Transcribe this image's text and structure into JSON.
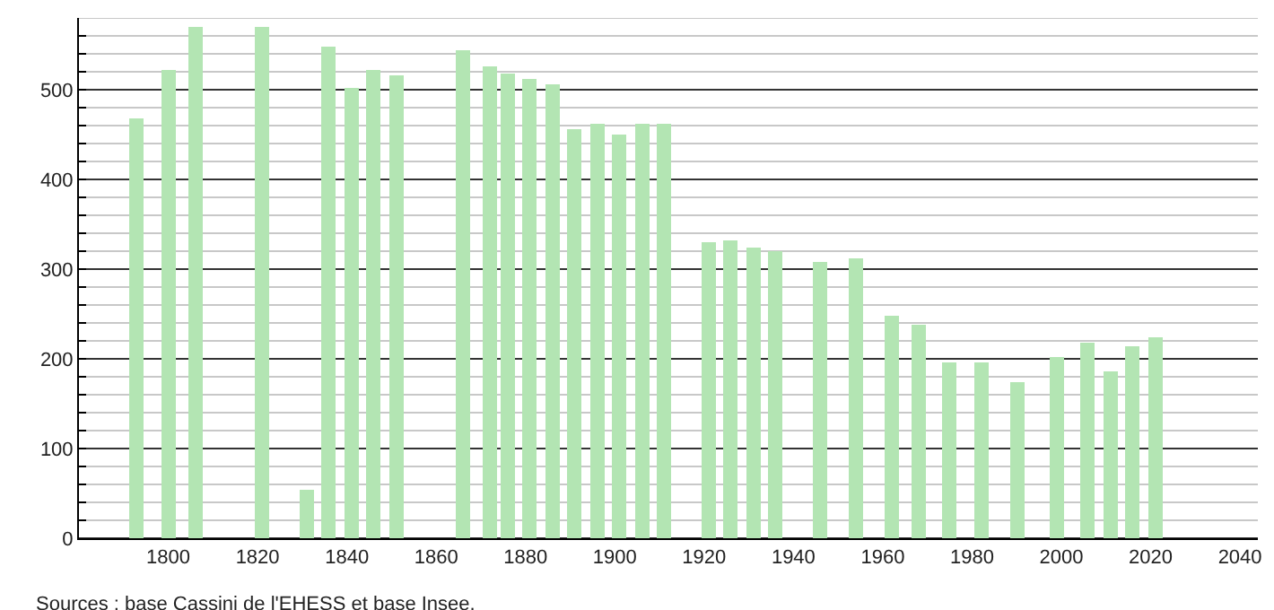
{
  "chart_data": {
    "type": "bar",
    "x": [
      1793,
      1800,
      1806,
      1821,
      1831,
      1836,
      1841,
      1846,
      1851,
      1866,
      1872,
      1876,
      1881,
      1886,
      1891,
      1896,
      1901,
      1906,
      1911,
      1921,
      1926,
      1931,
      1936,
      1946,
      1954,
      1962,
      1968,
      1975,
      1982,
      1990,
      1999,
      2006,
      2011,
      2016,
      2021
    ],
    "values": [
      468,
      522,
      570,
      570,
      54,
      548,
      502,
      522,
      517,
      544,
      526,
      519,
      513,
      506,
      456,
      462,
      450,
      462,
      462,
      330,
      332,
      324,
      320,
      308,
      312,
      248,
      239,
      196,
      196,
      174,
      202,
      219,
      186,
      214,
      224
    ],
    "color": "#b3e5b3",
    "xlim": [
      1780,
      2044
    ],
    "xticks": [
      1800,
      1820,
      1840,
      1860,
      1880,
      1900,
      1920,
      1940,
      1960,
      1980,
      2000,
      2020,
      2040
    ],
    "ylim": [
      0,
      580
    ],
    "yticks": [
      0,
      {
        "value": 20,
        "label": null
      },
      {
        "value": 40,
        "label": null
      },
      {
        "value": 60,
        "label": null
      },
      {
        "value": 80,
        "label": null
      },
      100,
      {
        "value": 120,
        "label": null
      },
      {
        "value": 140,
        "label": null
      },
      {
        "value": 160,
        "label": null
      },
      {
        "value": 180,
        "label": null
      },
      200,
      {
        "value": 220,
        "label": null
      },
      {
        "value": 240,
        "label": null
      },
      {
        "value": 260,
        "label": null
      },
      {
        "value": 280,
        "label": null
      },
      300,
      {
        "value": 320,
        "label": null
      },
      {
        "value": 340,
        "label": null
      },
      {
        "value": 360,
        "label": null
      },
      {
        "value": 380,
        "label": null
      },
      400,
      {
        "value": 420,
        "label": null
      },
      {
        "value": 440,
        "label": null
      },
      {
        "value": 460,
        "label": null
      },
      {
        "value": 480,
        "label": null
      },
      500,
      {
        "value": 520,
        "label": null
      },
      {
        "value": 540,
        "label": null
      },
      {
        "value": 560,
        "label": null
      },
      {
        "value": 580,
        "label": null
      }
    ],
    "grid": "y",
    "annotations": [
      "Sources : base Cassini de l'EHESS et base Insee."
    ]
  }
}
